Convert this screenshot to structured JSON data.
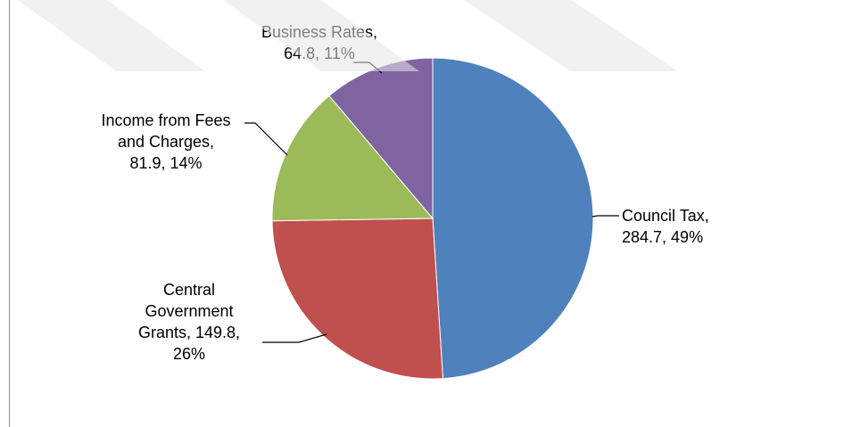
{
  "chart_data": {
    "type": "pie",
    "title": "",
    "slices": [
      {
        "name": "Council Tax",
        "value": 284.7,
        "percent": "49%",
        "color": "#4F81BD",
        "label_lines": [
          "Council Tax,",
          "284.7, 49%"
        ]
      },
      {
        "name": "Central Government Grants",
        "value": 149.8,
        "percent": "26%",
        "color": "#C0504D",
        "label_lines": [
          "Central",
          "Government",
          "Grants, 149.8,",
          "26%"
        ]
      },
      {
        "name": "Income from Fees and Charges",
        "value": 81.9,
        "percent": "14%",
        "color": "#9BBB59",
        "label_lines": [
          "Income from Fees",
          "and Charges,",
          "81.9, 14%"
        ]
      },
      {
        "name": "Business Rates",
        "value": 64.8,
        "percent": "11%",
        "color": "#8064A2",
        "label_lines": [
          "Business Rates,",
          "64.8, 11%"
        ]
      }
    ],
    "start_angle": "12 o'clock",
    "direction": "clockwise",
    "legend": "none",
    "data_labels": "outside with leader lines"
  }
}
